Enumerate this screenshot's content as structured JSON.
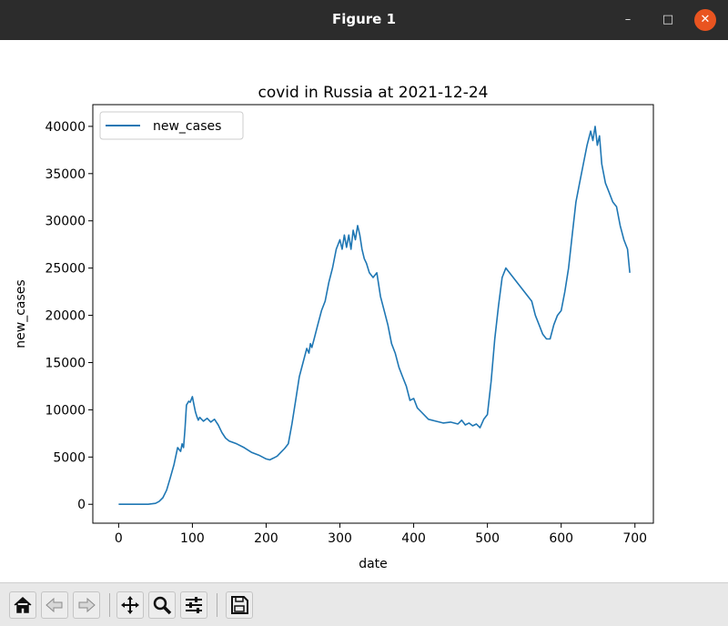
{
  "window": {
    "title": "Figure 1",
    "minimize_glyph": "–",
    "maximize_glyph": "□",
    "close_glyph": "✕"
  },
  "toolbar": {
    "buttons": [
      {
        "name": "home-button",
        "icon": "home-icon"
      },
      {
        "name": "back-button",
        "icon": "arrow-left-icon"
      },
      {
        "name": "forward-button",
        "icon": "arrow-right-icon"
      },
      {
        "name": "pan-button",
        "icon": "move-icon"
      },
      {
        "name": "zoom-button",
        "icon": "zoom-icon"
      },
      {
        "name": "configure-subplots-button",
        "icon": "sliders-icon"
      },
      {
        "name": "save-button",
        "icon": "save-icon"
      }
    ]
  },
  "colors": {
    "line": "#1f77b4",
    "titlebar": "#2c2c2c",
    "close": "#e95420"
  },
  "chart_data": {
    "type": "line",
    "title": "covid in Russia at 2021-12-24",
    "xlabel": "date",
    "ylabel": "new_cases",
    "xlim": [
      -35,
      725
    ],
    "ylim": [
      -2000,
      42300
    ],
    "xticks": [
      0,
      100,
      200,
      300,
      400,
      500,
      600,
      700
    ],
    "yticks": [
      0,
      5000,
      10000,
      15000,
      20000,
      25000,
      30000,
      35000,
      40000
    ],
    "legend": {
      "position": "upper-left",
      "entries": [
        "new_cases"
      ]
    },
    "grid": false,
    "series": [
      {
        "name": "new_cases",
        "x": [
          0,
          20,
          40,
          50,
          55,
          60,
          65,
          70,
          75,
          80,
          84,
          86,
          88,
          90,
          92,
          95,
          97,
          100,
          102,
          104,
          106,
          108,
          110,
          115,
          120,
          125,
          130,
          135,
          140,
          145,
          150,
          160,
          170,
          180,
          190,
          200,
          205,
          210,
          215,
          220,
          225,
          230,
          235,
          240,
          245,
          250,
          255,
          258,
          260,
          262,
          265,
          270,
          275,
          280,
          285,
          290,
          295,
          300,
          303,
          306,
          309,
          312,
          315,
          318,
          321,
          324,
          327,
          330,
          333,
          336,
          340,
          345,
          350,
          355,
          360,
          365,
          370,
          375,
          380,
          385,
          390,
          395,
          400,
          405,
          410,
          420,
          430,
          440,
          450,
          460,
          465,
          470,
          475,
          480,
          485,
          490,
          495,
          500,
          505,
          510,
          515,
          520,
          525,
          530,
          535,
          540,
          545,
          550,
          555,
          560,
          565,
          570,
          575,
          580,
          585,
          590,
          595,
          600,
          605,
          610,
          615,
          620,
          625,
          630,
          635,
          640,
          643,
          646,
          649,
          652,
          655,
          660,
          665,
          670,
          675,
          680,
          685,
          690,
          693
        ],
        "values": [
          0,
          0,
          0,
          100,
          300,
          700,
          1500,
          2800,
          4200,
          6000,
          5600,
          6400,
          6000,
          8000,
          10500,
          10900,
          10800,
          11400,
          10600,
          9800,
          9300,
          8900,
          9200,
          8800,
          9100,
          8700,
          9000,
          8400,
          7600,
          7000,
          6700,
          6400,
          6000,
          5500,
          5200,
          4800,
          4700,
          4900,
          5100,
          5500,
          5900,
          6400,
          8500,
          11000,
          13500,
          15000,
          16500,
          16000,
          17000,
          16600,
          17500,
          19000,
          20500,
          21500,
          23500,
          25000,
          27000,
          28000,
          27000,
          28500,
          27200,
          28500,
          27000,
          29000,
          28000,
          29500,
          28500,
          27000,
          26000,
          25500,
          24500,
          24000,
          24500,
          22000,
          20500,
          19000,
          17000,
          16000,
          14500,
          13500,
          12500,
          11000,
          11200,
          10200,
          9800,
          9000,
          8800,
          8600,
          8700,
          8500,
          8900,
          8400,
          8600,
          8300,
          8500,
          8100,
          9000,
          9500,
          13000,
          17500,
          21000,
          24000,
          25000,
          24500,
          24000,
          23500,
          23000,
          22500,
          22000,
          21500,
          20000,
          19000,
          18000,
          17500,
          17500,
          19000,
          20000,
          20500,
          22500,
          25000,
          28500,
          32000,
          34000,
          36000,
          38000,
          39500,
          38500,
          40000,
          38000,
          39000,
          36000,
          34000,
          33000,
          32000,
          31500,
          29500,
          28000,
          27000,
          24500
        ]
      }
    ]
  }
}
